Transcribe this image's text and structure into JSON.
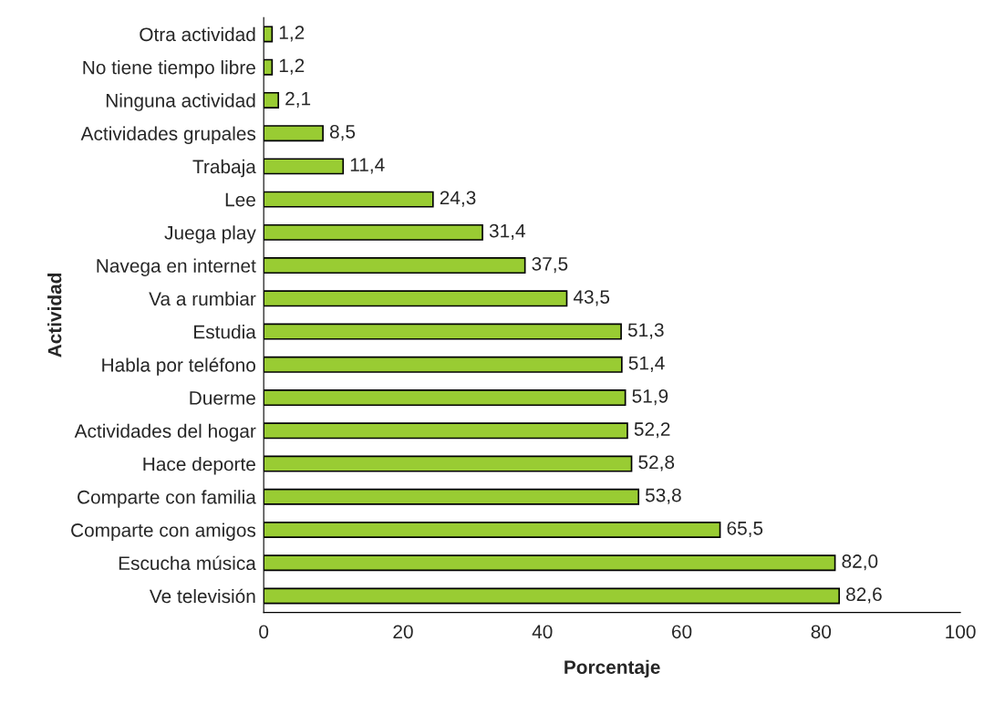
{
  "chart_data": {
    "type": "bar",
    "orientation": "horizontal",
    "xlabel": "Porcentaje",
    "ylabel": "Actividad",
    "categories": [
      "Otra actividad",
      "No tiene tiempo libre",
      "Ninguna actividad",
      "Actividades grupales",
      "Trabaja",
      "Lee",
      "Juega play",
      "Navega en internet",
      "Va a rumbiar",
      "Estudia",
      "Habla por teléfono",
      "Duerme",
      "Actividades del hogar",
      "Hace deporte",
      "Comparte con familia",
      "Comparte con amigos",
      "Escucha música",
      "Ve televisión"
    ],
    "values": [
      1.2,
      1.2,
      2.1,
      8.5,
      11.4,
      24.3,
      31.4,
      37.5,
      43.5,
      51.3,
      51.4,
      51.9,
      52.2,
      52.8,
      53.8,
      65.5,
      82.0,
      82.6
    ],
    "value_labels": [
      "1,2",
      "1,2",
      "2,1",
      "8,5",
      "11,4",
      "24,3",
      "31,4",
      "37,5",
      "43,5",
      "51,3",
      "51,4",
      "51,9",
      "52,2",
      "52,8",
      "53,8",
      "65,5",
      "82,0",
      "82,6"
    ],
    "color": "#99cc33",
    "xlim": [
      0,
      100
    ],
    "xticks": [
      0,
      20,
      40,
      60,
      80,
      100
    ],
    "grid": false,
    "legend": false
  }
}
